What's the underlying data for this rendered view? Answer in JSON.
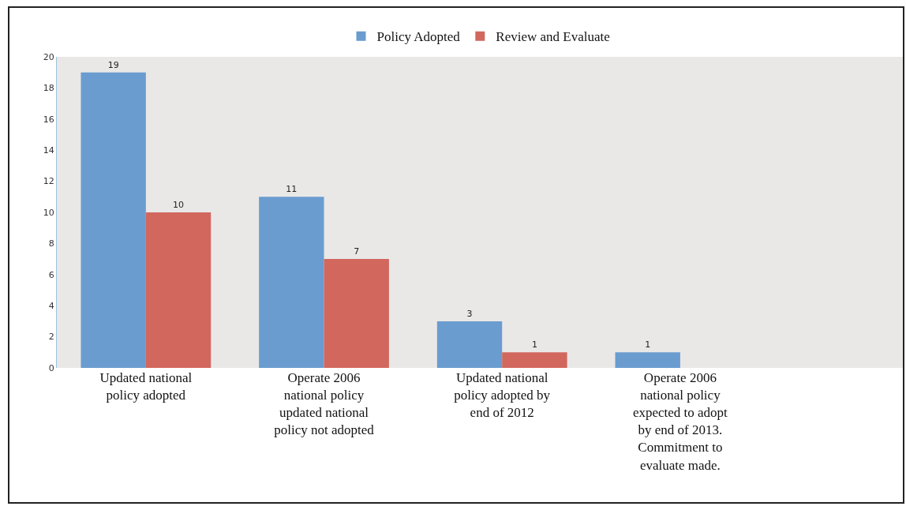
{
  "chart_data": {
    "type": "bar",
    "categories": [
      "Updated national policy adopted",
      "Operate 2006 national policy updated national policy not adopted",
      "Updated national policy adopted by end of 2012",
      "Operate 2006 national policy expected to adopt by end of 2013. Commitment to evaluate made."
    ],
    "series": [
      {
        "name": "Policy Adopted",
        "color": "#6a9ccf",
        "values": [
          19,
          11,
          3,
          1
        ]
      },
      {
        "name": "Review and Evaluate",
        "color": "#d2675e",
        "values": [
          10,
          7,
          1,
          null
        ]
      }
    ],
    "ylim": [
      0,
      20
    ],
    "yticks": [
      0,
      2,
      4,
      6,
      8,
      10,
      12,
      14,
      16,
      18,
      20
    ],
    "grid": false,
    "legend": "top",
    "data_labels": true
  }
}
